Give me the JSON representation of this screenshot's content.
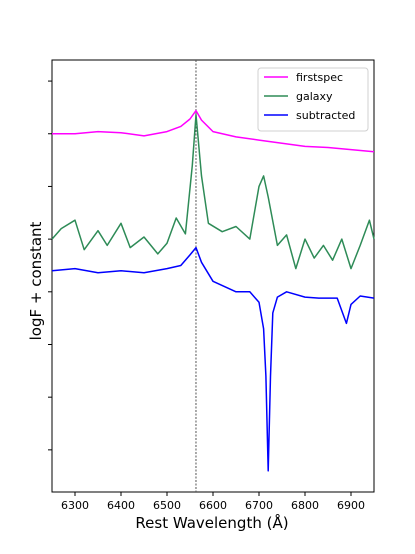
{
  "chart_data": {
    "type": "line",
    "title": "",
    "xlabel": "Rest Wavelength (Å)",
    "ylabel": "logF + constant",
    "xlim": [
      6250,
      6950
    ],
    "ylim": [
      -3.4,
      0.7
    ],
    "x_ticks": [
      6300,
      6400,
      6500,
      6600,
      6700,
      6800,
      6900
    ],
    "y_tick_labels_shown": false,
    "grid": false,
    "legend_position": "upper right",
    "reference_line": {
      "x": 6563,
      "style": "dotted",
      "color": "#555555"
    },
    "series": [
      {
        "name": "firstspec",
        "color": "#ff00ff",
        "x": [
          6250,
          6300,
          6350,
          6400,
          6450,
          6500,
          6530,
          6550,
          6563,
          6575,
          6600,
          6650,
          6700,
          6750,
          6800,
          6850,
          6900,
          6950
        ],
        "y": [
          0.0,
          0.0,
          0.02,
          0.01,
          -0.02,
          0.02,
          0.07,
          0.14,
          0.22,
          0.13,
          0.02,
          -0.03,
          -0.06,
          -0.09,
          -0.12,
          -0.13,
          -0.15,
          -0.17
        ]
      },
      {
        "name": "galaxy",
        "color": "#2e8b57",
        "x": [
          6250,
          6270,
          6300,
          6320,
          6350,
          6370,
          6400,
          6420,
          6450,
          6480,
          6500,
          6520,
          6540,
          6555,
          6563,
          6575,
          6590,
          6620,
          6650,
          6680,
          6700,
          6710,
          6720,
          6740,
          6760,
          6780,
          6800,
          6820,
          6840,
          6860,
          6880,
          6900,
          6920,
          6940,
          6950
        ],
        "y": [
          -1.0,
          -0.9,
          -0.82,
          -1.1,
          -0.92,
          -1.06,
          -0.85,
          -1.08,
          -0.98,
          -1.14,
          -1.04,
          -0.8,
          -0.95,
          -0.3,
          0.18,
          -0.4,
          -0.85,
          -0.93,
          -0.88,
          -1.0,
          -0.5,
          -0.4,
          -0.6,
          -1.06,
          -0.96,
          -1.28,
          -1.0,
          -1.18,
          -1.06,
          -1.2,
          -1.0,
          -1.28,
          -1.06,
          -0.82,
          -1.0
        ]
      },
      {
        "name": "subtracted",
        "color": "#0000ff",
        "x": [
          6250,
          6300,
          6350,
          6400,
          6450,
          6500,
          6530,
          6550,
          6563,
          6575,
          6600,
          6650,
          6680,
          6700,
          6710,
          6715,
          6720,
          6725,
          6730,
          6740,
          6760,
          6800,
          6830,
          6850,
          6870,
          6880,
          6890,
          6900,
          6920,
          6950
        ],
        "y": [
          -1.3,
          -1.28,
          -1.32,
          -1.3,
          -1.32,
          -1.28,
          -1.25,
          -1.15,
          -1.08,
          -1.22,
          -1.4,
          -1.5,
          -1.5,
          -1.6,
          -1.85,
          -2.3,
          -3.2,
          -2.3,
          -1.7,
          -1.55,
          -1.5,
          -1.55,
          -1.56,
          -1.56,
          -1.56,
          -1.68,
          -1.8,
          -1.62,
          -1.54,
          -1.56
        ]
      }
    ]
  }
}
